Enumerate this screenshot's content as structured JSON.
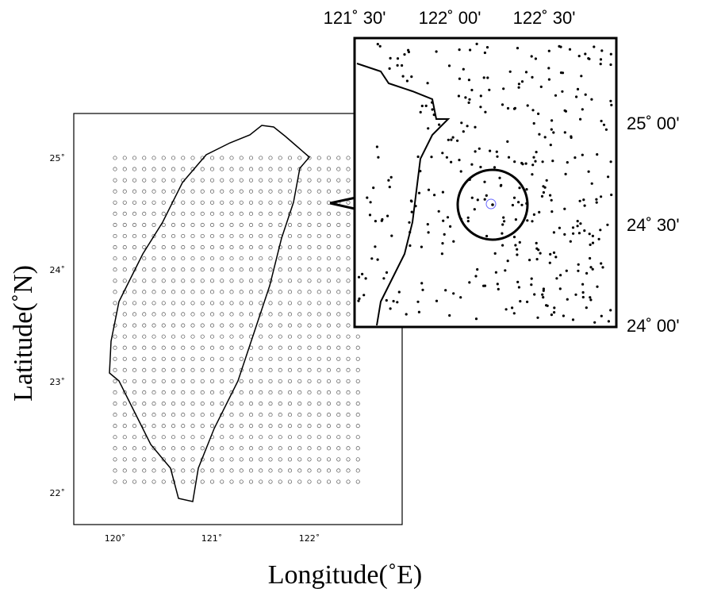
{
  "main_map": {
    "xtick_labels": [
      "120˚",
      "121˚",
      "122˚"
    ],
    "ytick_labels": [
      "25˚",
      "24˚",
      "23˚",
      "22˚"
    ],
    "xlabel": "Longitude(˚E)",
    "ylabel": "Latitude(˚N)"
  },
  "inset_map": {
    "top_labels": [
      "121˚ 30'",
      "122˚ 00'",
      "122˚ 30'"
    ],
    "right_labels": [
      "25˚ 00'",
      "24˚ 30'",
      "24˚ 00'"
    ]
  }
}
